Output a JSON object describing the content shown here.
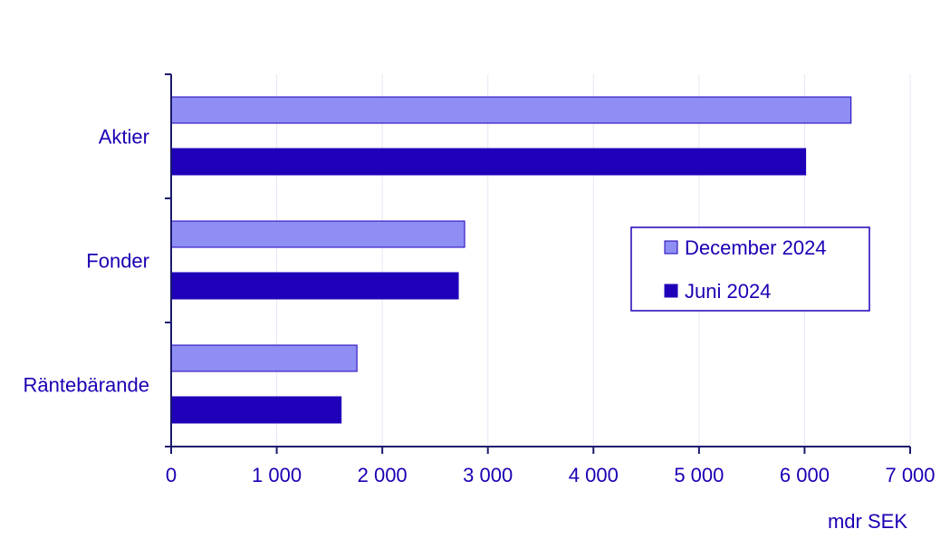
{
  "chart_data": {
    "type": "bar",
    "orientation": "horizontal",
    "categories": [
      "Aktier",
      "Fonder",
      "Räntebärande"
    ],
    "series": [
      {
        "name": "December 2024",
        "values": [
          6440,
          2780,
          1760
        ]
      },
      {
        "name": "Juni 2024",
        "values": [
          6010,
          2720,
          1610
        ]
      }
    ],
    "xlim": [
      0,
      7000
    ],
    "xticks": [
      0,
      1000,
      2000,
      3000,
      4000,
      5000,
      6000,
      7000
    ],
    "xtick_labels": [
      "0",
      "1 000",
      "2 000",
      "3 000",
      "4 000",
      "5 000",
      "6 000",
      "7 000"
    ],
    "xlabel": "mdr SEK",
    "ylabel": "",
    "title": "",
    "grid": "vertical",
    "legend_position": "right",
    "colors": {
      "December 2024": "#8e8ef5",
      "Juni 2024": "#1f00b8",
      "text": "#1a00b4",
      "axis": "#1a1a6e",
      "grid": "#e6e6f5"
    }
  }
}
